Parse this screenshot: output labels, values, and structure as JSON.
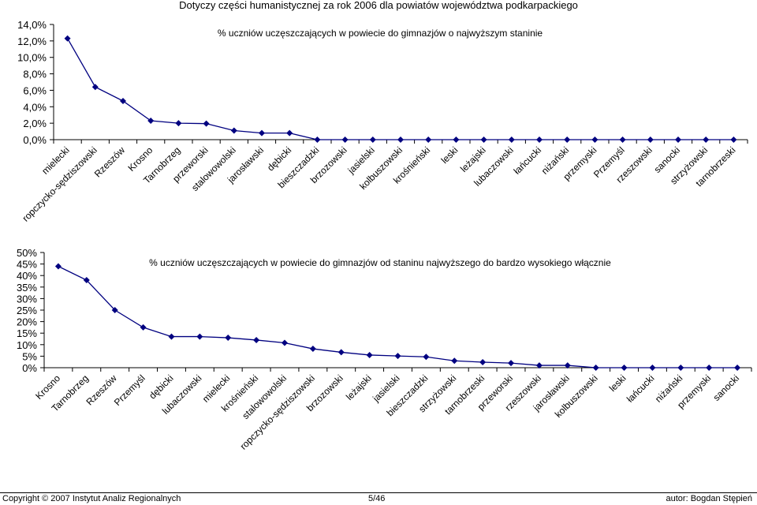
{
  "title": "Dotyczy części humanistycznej za rok 2006 dla powiatów województwa podkarpackiego",
  "chart_data": [
    {
      "type": "line",
      "title": "% uczniów uczęszczających w powiecie do gimnazjów o najwyższym staninie",
      "yticks": [
        "14,0%",
        "12,0%",
        "10,0%",
        "8,0%",
        "6,0%",
        "4,0%",
        "2,0%",
        "0,0%"
      ],
      "ylim": [
        0,
        14
      ],
      "categories": [
        "mielecki",
        "ropczycko-sędziszowski",
        "Rzeszów",
        "Krosno",
        "Tarnobrzeg",
        "przeworski",
        "stalowowolski",
        "jarosławski",
        "dębicki",
        "bieszczadzki",
        "brzozowski",
        "jasielski",
        "kolbuszowski",
        "krośnieński",
        "leski",
        "leżajski",
        "lubaczowski",
        "łańcucki",
        "niżański",
        "przemyski",
        "Przemyśl",
        "rzeszowski",
        "sanocki",
        "strzyżowski",
        "tarnobrzeski"
      ],
      "values": [
        12.3,
        6.4,
        4.7,
        2.3,
        2.0,
        1.95,
        1.1,
        0.8,
        0.8,
        0,
        0,
        0,
        0,
        0,
        0,
        0,
        0,
        0,
        0,
        0,
        0,
        0,
        0,
        0,
        0
      ],
      "color": "#000080"
    },
    {
      "type": "line",
      "title": "% uczniów uczęszczających w powiecie do gimnazjów od staninu najwyższego do bardzo wysokiego włącznie",
      "yticks": [
        "50%",
        "45%",
        "40%",
        "35%",
        "30%",
        "25%",
        "20%",
        "15%",
        "10%",
        "5%",
        "0%"
      ],
      "ylim": [
        0,
        50
      ],
      "categories": [
        "Krosno",
        "Tarnobrzeg",
        "Rzeszów",
        "Przemyśl",
        "dębicki",
        "lubaczowski",
        "mielecki",
        "krośnieński",
        "stalowowolski",
        "ropczycko-sędziszowski",
        "brzozowski",
        "leżajski",
        "jasielski",
        "bieszczadzki",
        "strzyżowski",
        "tarnobrzeski",
        "przeworski",
        "rzeszowski",
        "jarosławski",
        "kolbuszowski",
        "leski",
        "łańcucki",
        "niżański",
        "przemyski",
        "sanocki"
      ],
      "values": [
        44,
        38,
        25,
        17.5,
        13.5,
        13.5,
        13,
        12,
        10.8,
        8.2,
        6.7,
        5.5,
        5.1,
        4.7,
        3,
        2.4,
        2,
        1,
        1,
        0,
        0,
        0,
        0,
        0,
        0
      ],
      "color": "#000080"
    }
  ],
  "footer": {
    "left": "Copyright © 2007 Instytut Analiz Regionalnych",
    "center": "5/46",
    "right": "autor: Bogdan Stępień"
  }
}
